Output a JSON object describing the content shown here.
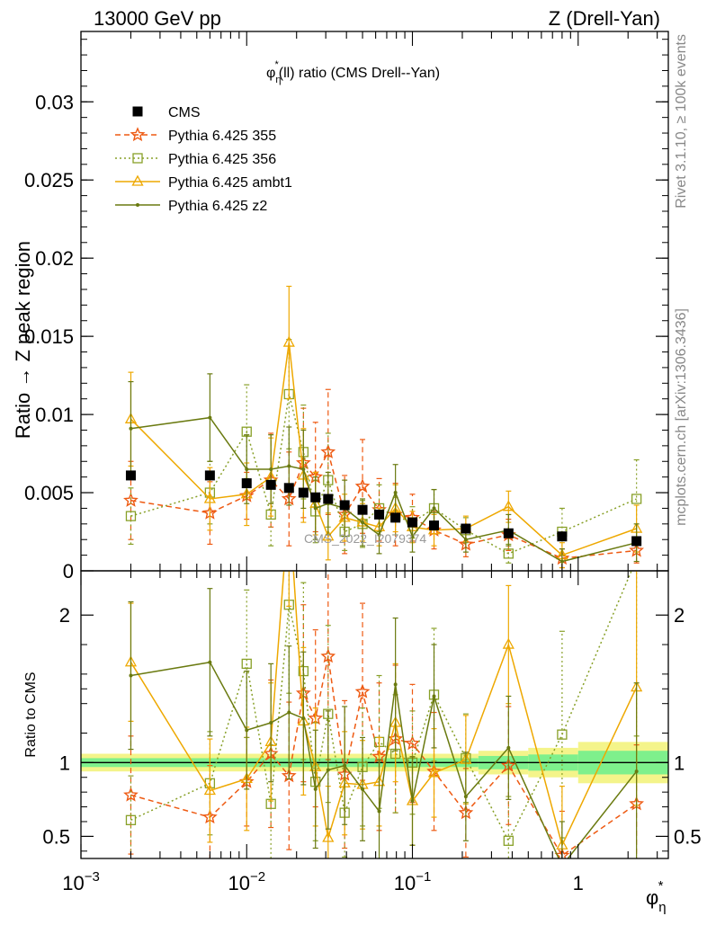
{
  "header": {
    "left": "13000 GeV pp",
    "right": "Z (Drell-Yan)"
  },
  "side_labels": {
    "rivet": "Rivet 3.1.10, ≥ 100k events",
    "mcplots": "mcplots.cern.ch [arXiv:1306.3436]"
  },
  "colors": {
    "cms": "#000000",
    "p355": "#ee5a12",
    "p356": "#88a028",
    "ambt1": "#eea800",
    "z2": "#6a7a10",
    "band_inner": "#7ef08c",
    "band_outer": "#f4f48a"
  },
  "chart_data": [
    {
      "type": "line",
      "title": "φη*(ll) ratio (CMS Drell--Yan)",
      "title_parts": {
        "phi": "φ",
        "eta": "η",
        "star": "*",
        "rest": "(ll) ratio (CMS Drell--Yan)"
      },
      "ylabel": "Ratio → Z peak region",
      "xscale": "log",
      "xlim": [
        0.001,
        3.5
      ],
      "ylim": [
        0,
        0.0345
      ],
      "yticks": [
        "0",
        "0.005",
        "0.01",
        "0.015",
        "0.02",
        "0.025",
        "0.03"
      ],
      "ytick_values": [
        0,
        0.005,
        0.01,
        0.015,
        0.02,
        0.025,
        0.03
      ],
      "watermark": "CMS_2022_I2079374",
      "legend_position": "top-left",
      "x": [
        0.002,
        0.006,
        0.01,
        0.014,
        0.018,
        0.022,
        0.026,
        0.031,
        0.039,
        0.05,
        0.063,
        0.079,
        0.1,
        0.135,
        0.21,
        0.38,
        0.8,
        2.25
      ],
      "series": [
        {
          "name": "CMS",
          "key": "cms",
          "style": "square-filled",
          "values": [
            0.0061,
            0.0061,
            0.0056,
            0.0055,
            0.0053,
            0.005,
            0.0047,
            0.0046,
            0.0042,
            0.0039,
            0.0036,
            0.0034,
            0.0031,
            0.0029,
            0.0027,
            0.0024,
            0.0022,
            0.0019
          ]
        },
        {
          "name": "Pythia 6.425 355",
          "key": "p355",
          "style": "star-dashed",
          "values": [
            0.0045,
            0.0037,
            0.0048,
            0.0058,
            0.0046,
            0.0069,
            0.006,
            0.0076,
            0.0036,
            0.0054,
            0.0039,
            0.0036,
            0.0034,
            0.0026,
            0.0017,
            0.0023,
            0.0008,
            0.0013
          ],
          "errors": [
            0.0025,
            0.002,
            0.0015,
            0.003,
            0.003,
            0.0035,
            0.0035,
            0.004,
            0.0025,
            0.003,
            0.002,
            0.002,
            0.0015,
            0.0012,
            0.0008,
            0.001,
            0.0006,
            0.0008
          ]
        },
        {
          "name": "Pythia 6.425 356",
          "key": "p356",
          "style": "square-dotted",
          "values": [
            0.0035,
            0.005,
            0.0089,
            0.0036,
            0.0113,
            0.0076,
            0.0038,
            0.0058,
            0.0025,
            0.003,
            0.004,
            0.0035,
            0.0031,
            0.004,
            0.0026,
            0.0011,
            0.0025,
            0.0046
          ],
          "errors": [
            0.0018,
            0.002,
            0.003,
            0.002,
            0.0035,
            0.003,
            0.002,
            0.003,
            0.0012,
            0.0015,
            0.0015,
            0.0012,
            0.001,
            0.0012,
            0.0008,
            0.0006,
            0.0015,
            0.0025
          ]
        },
        {
          "name": "Pythia 6.425 ambt1",
          "key": "ambt1",
          "style": "triangle-solid",
          "values": [
            0.0097,
            0.0046,
            0.0049,
            0.006,
            0.0146,
            0.0061,
            0.0043,
            0.0022,
            0.0034,
            0.0031,
            0.0028,
            0.004,
            0.0028,
            0.0026,
            0.0027,
            0.0041,
            0.001,
            0.0027
          ],
          "errors": [
            0.003,
            0.002,
            0.002,
            0.0025,
            0.0036,
            0.003,
            0.002,
            0.0015,
            0.0015,
            0.0012,
            0.0012,
            0.0015,
            0.001,
            0.001,
            0.0008,
            0.001,
            0.0008,
            0.0015
          ]
        },
        {
          "name": "Pythia 6.425 z2",
          "key": "z2",
          "style": "dot-solid",
          "values": [
            0.0091,
            0.0098,
            0.0065,
            0.0065,
            0.0067,
            0.0065,
            0.004,
            0.0043,
            0.004,
            0.0031,
            0.0023,
            0.005,
            0.0022,
            0.004,
            0.002,
            0.0026,
            0.0006,
            0.0018
          ],
          "errors": [
            0.003,
            0.0028,
            0.0022,
            0.0022,
            0.0025,
            0.0025,
            0.002,
            0.002,
            0.0018,
            0.0015,
            0.0012,
            0.0018,
            0.001,
            0.0012,
            0.0008,
            0.001,
            0.0008,
            0.0012
          ]
        }
      ]
    },
    {
      "type": "line",
      "ylabel": "Ratio to CMS",
      "xlabel": "φη*",
      "xlabel_parts": {
        "phi": "φ",
        "eta": "η",
        "star": "*"
      },
      "xscale": "log",
      "xlim": [
        0.001,
        3.5
      ],
      "ylim": [
        0.35,
        2.3
      ],
      "xticks": [
        {
          "value": 0.001,
          "base": "10",
          "exp": "−3"
        },
        {
          "value": 0.01,
          "base": "10",
          "exp": "−2"
        },
        {
          "value": 0.1,
          "base": "10",
          "exp": "−1"
        },
        {
          "value": 1,
          "base": "1",
          "exp": ""
        }
      ],
      "yticks": [
        "0.5",
        "1",
        "2"
      ],
      "ytick_values": [
        0.5,
        1,
        2
      ],
      "x": [
        0.002,
        0.006,
        0.01,
        0.014,
        0.018,
        0.022,
        0.026,
        0.031,
        0.039,
        0.05,
        0.063,
        0.079,
        0.1,
        0.135,
        0.21,
        0.38,
        0.8,
        2.25
      ],
      "band_edges": [
        0.001,
        0.25,
        0.5,
        1.0,
        3.5
      ],
      "band_inner": [
        0.03,
        0.045,
        0.055,
        0.08
      ],
      "band_outer": [
        0.06,
        0.08,
        0.1,
        0.14
      ],
      "series": [
        {
          "name": "Pythia 6.425 355",
          "key": "p355",
          "style": "star-dashed",
          "values": [
            0.78,
            0.63,
            0.87,
            1.06,
            0.91,
            1.47,
            1.3,
            1.72,
            0.92,
            1.48,
            1.04,
            1.16,
            1.13,
            0.94,
            0.66,
            0.98,
            0.37,
            0.72
          ],
          "errors": [
            0.4,
            0.35,
            0.3,
            0.5,
            0.5,
            0.6,
            0.6,
            0.7,
            0.5,
            0.6,
            0.5,
            0.5,
            0.4,
            0.4,
            0.3,
            0.4,
            0.3,
            0.4
          ]
        },
        {
          "name": "Pythia 6.425 356",
          "key": "p356",
          "style": "square-dotted",
          "values": [
            0.61,
            0.86,
            1.67,
            0.72,
            2.07,
            1.62,
            0.87,
            1.33,
            0.66,
            0.97,
            1.14,
            1.06,
            1.0,
            1.46,
            1.03,
            0.47,
            1.19,
            2.38
          ],
          "errors": [
            0.3,
            0.35,
            0.5,
            0.4,
            0.6,
            0.6,
            0.4,
            0.6,
            0.3,
            0.4,
            0.45,
            0.4,
            0.35,
            0.45,
            0.3,
            0.3,
            0.7,
            1.2
          ]
        },
        {
          "name": "Pythia 6.425 ambt1",
          "key": "ambt1",
          "style": "triangle-solid",
          "values": [
            1.68,
            0.81,
            0.89,
            1.14,
            2.76,
            1.28,
            0.97,
            0.49,
            0.86,
            0.85,
            0.87,
            1.27,
            0.74,
            0.93,
            1.02,
            1.8,
            0.44,
            1.51
          ],
          "errors": [
            0.4,
            0.35,
            0.35,
            0.4,
            0.7,
            0.5,
            0.4,
            0.35,
            0.35,
            0.3,
            0.3,
            0.4,
            0.3,
            0.3,
            0.3,
            0.4,
            0.4,
            0.8
          ]
        },
        {
          "name": "Pythia 6.425 z2",
          "key": "z2",
          "style": "dot-solid",
          "values": [
            1.59,
            1.68,
            1.22,
            1.27,
            1.34,
            1.3,
            0.82,
            0.95,
            0.98,
            0.82,
            0.67,
            1.53,
            0.74,
            1.45,
            0.77,
            1.1,
            0.3,
            0.94
          ],
          "errors": [
            0.5,
            0.5,
            0.4,
            0.4,
            0.45,
            0.45,
            0.4,
            0.4,
            0.4,
            0.35,
            0.35,
            0.45,
            0.3,
            0.35,
            0.3,
            0.35,
            0.3,
            0.6
          ]
        }
      ]
    }
  ]
}
